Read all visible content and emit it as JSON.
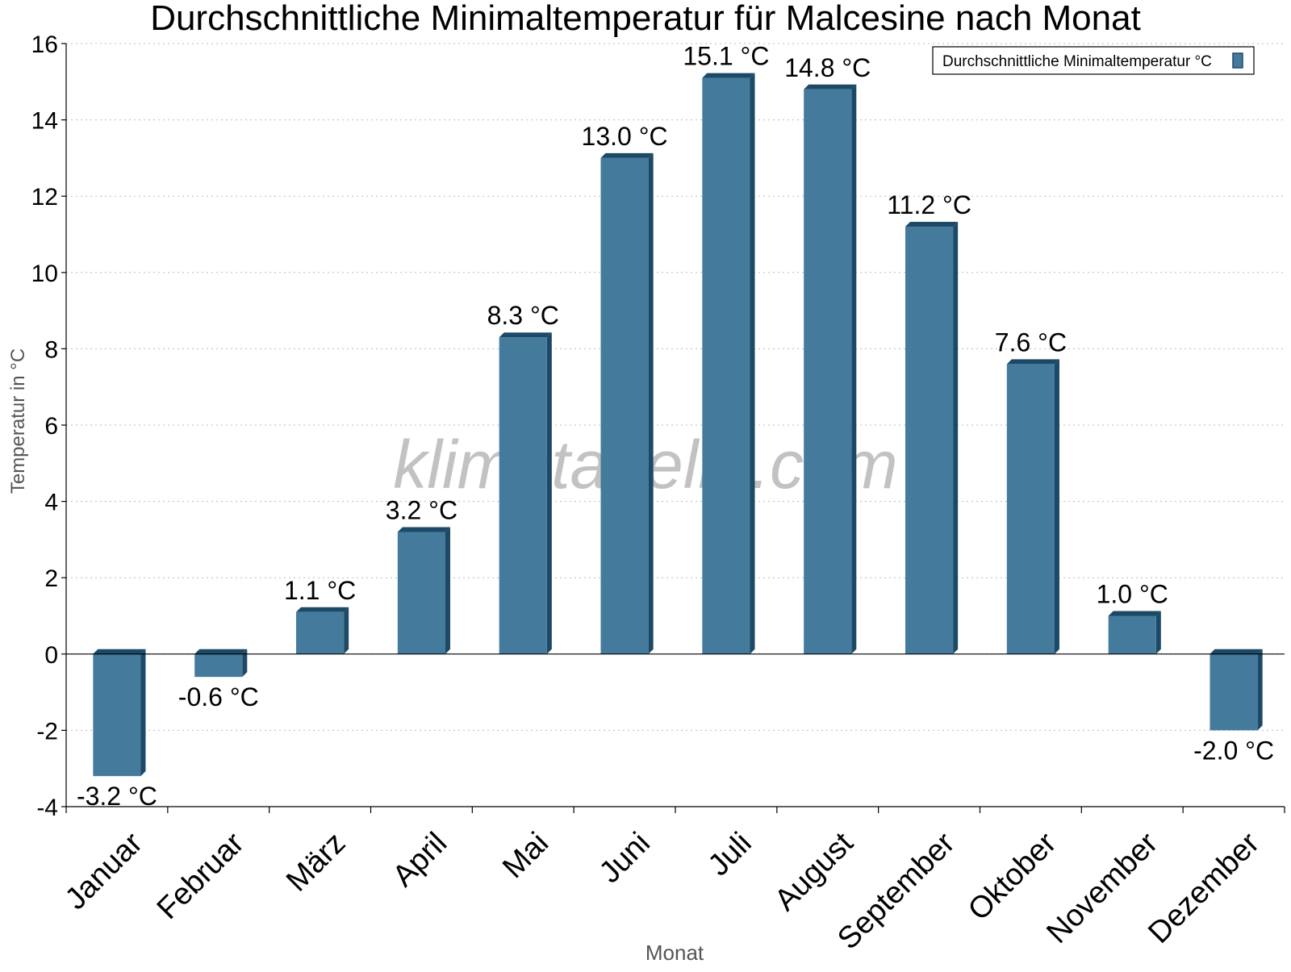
{
  "chart_data": {
    "type": "bar",
    "title": "Durchschnittliche Minimaltemperatur für Malcesine nach Monat",
    "xlabel": "Monat",
    "ylabel": "Temperatur in °C",
    "ylim": [
      -4,
      16
    ],
    "yticks": [
      -4,
      -2,
      0,
      2,
      4,
      6,
      8,
      10,
      12,
      14,
      16
    ],
    "ytick_labels": [
      "-4",
      "-2",
      "0",
      "2",
      "4",
      "6",
      "8",
      "10",
      "12",
      "14",
      "16"
    ],
    "grid": true,
    "legend_position": "top-right",
    "categories": [
      "Januar",
      "Februar",
      "März",
      "April",
      "Mai",
      "Juni",
      "Juli",
      "August",
      "September",
      "Oktober",
      "November",
      "Dezember"
    ],
    "series": [
      {
        "name": "Durchschnittliche Minimaltemperatur °C",
        "color": "#447a9c",
        "values": [
          -3.2,
          -0.6,
          1.1,
          3.2,
          8.3,
          13.0,
          15.1,
          14.8,
          11.2,
          7.6,
          1.0,
          -2.0
        ],
        "labels": [
          "-3.2 °C",
          "-0.6 °C",
          "1.1 °C",
          "3.2 °C",
          "8.3 °C",
          "13.0 °C",
          "15.1 °C",
          "14.8 °C",
          "11.2 °C",
          "7.6 °C",
          "1.0 °C",
          "-2.0 °C"
        ]
      }
    ],
    "watermark": "klimatabelle.com"
  }
}
